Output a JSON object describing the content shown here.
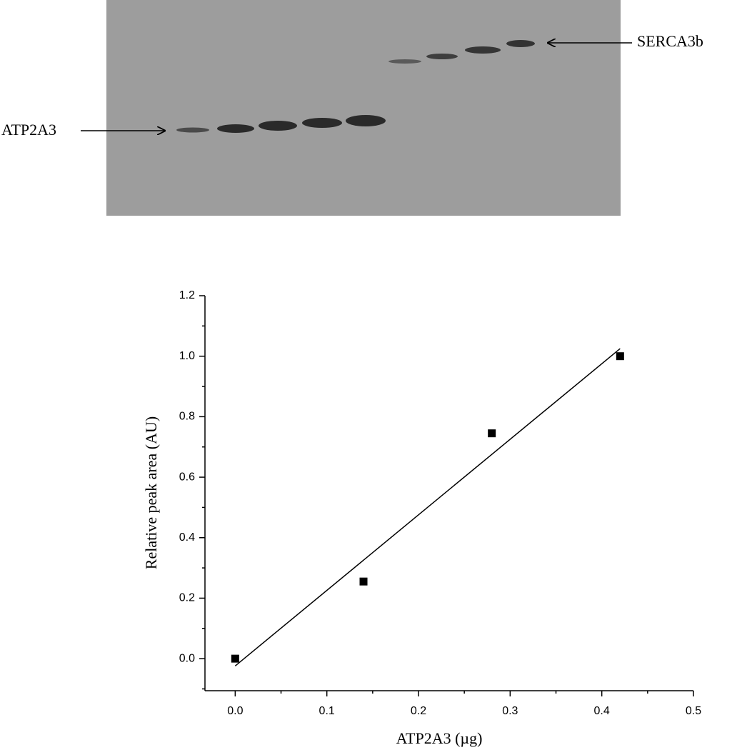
{
  "blot": {
    "left_label": "ATP2A3",
    "right_label": "SERCA3b"
  },
  "chart_data": {
    "type": "scatter",
    "x_label": "ATP2A3 (µg)",
    "y_label": "Relative peak area (AU)",
    "x": [
      0,
      0.14,
      0.28,
      0.42
    ],
    "values": [
      0,
      0.255,
      0.745,
      1.0
    ],
    "color": "#000000",
    "fit_line": {
      "x": [
        0,
        0.42
      ],
      "values": [
        -0.024,
        1.025
      ],
      "color": "#000000"
    },
    "xlim": [
      -0.033,
      0.5
    ],
    "ylim": [
      -0.106,
      1.2
    ],
    "xticks": [
      {
        "value": 0,
        "label": "0.0"
      },
      0.1,
      0.2,
      0.3,
      0.4,
      0.5
    ],
    "yticks": [
      {
        "value": 0,
        "label": "0.0"
      },
      0.2,
      0.4,
      0.6,
      0.8,
      {
        "value": 1,
        "label": "1.0"
      },
      1.2
    ],
    "xminorticks": [
      0.05,
      0.15,
      0.25,
      0.35,
      0.45
    ],
    "yminorticks": [
      -0.1,
      0.1,
      0.3,
      0.5,
      0.7,
      0.9,
      1.1
    ],
    "grid": false
  }
}
